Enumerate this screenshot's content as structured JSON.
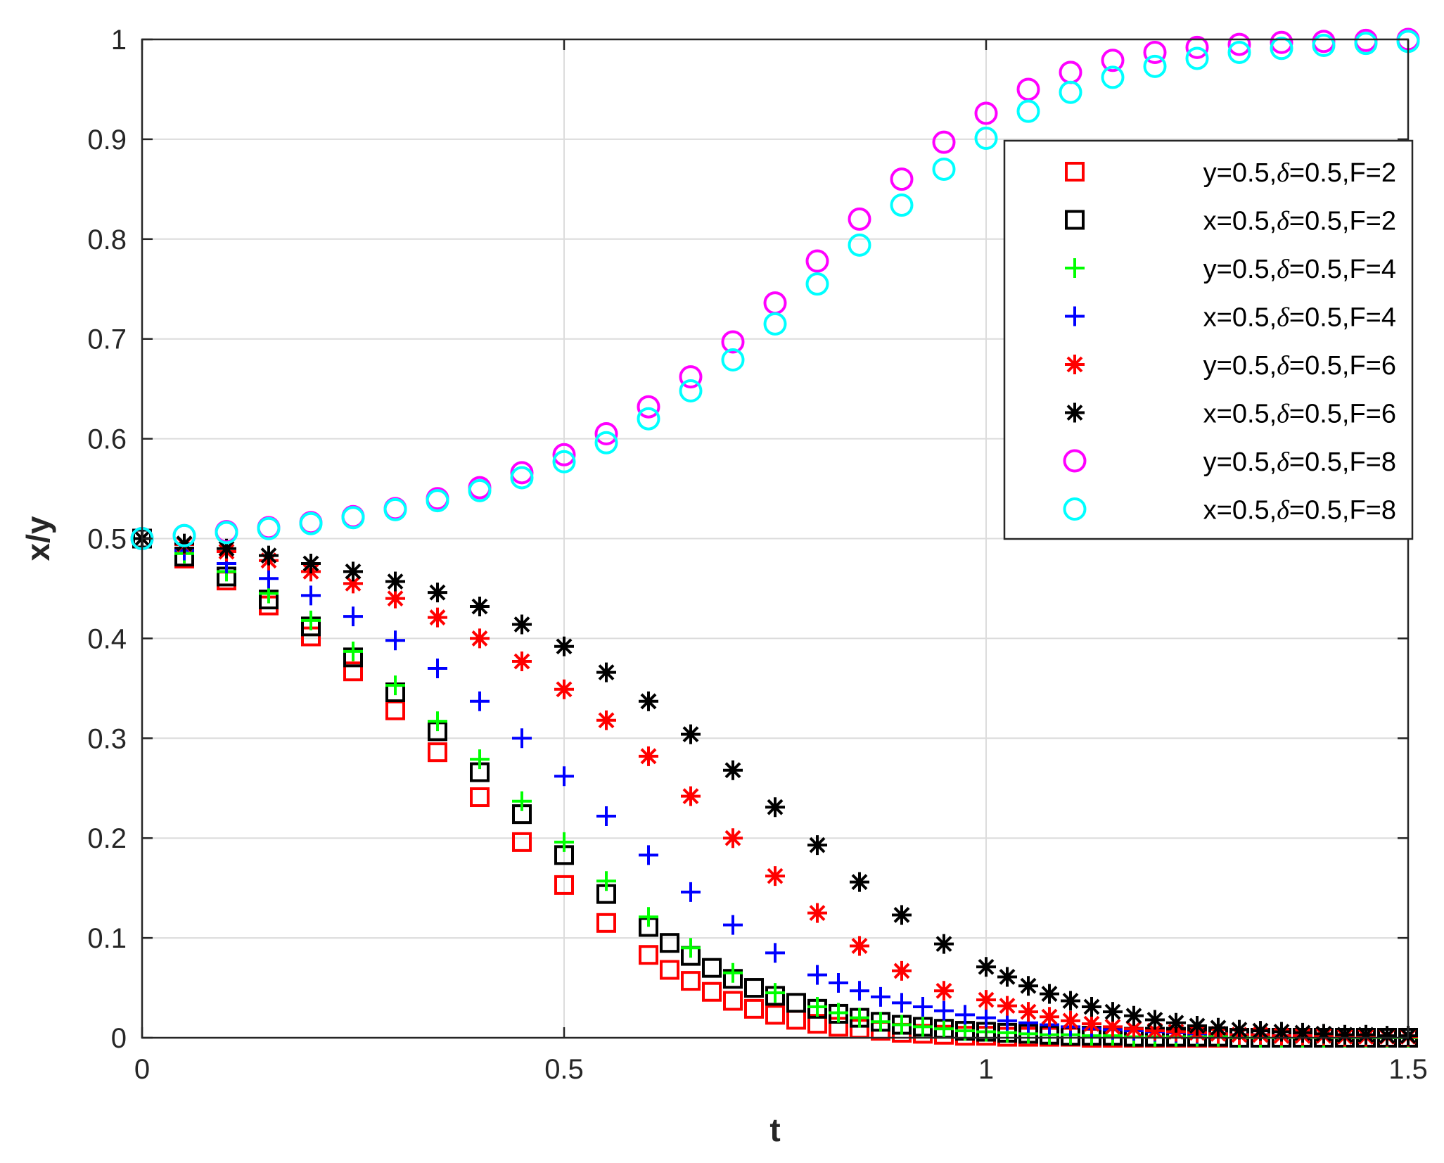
{
  "chart_data": {
    "type": "scatter",
    "title": "",
    "xlabel": "t",
    "ylabel": "x/y",
    "xlim": [
      0,
      1.5
    ],
    "ylim": [
      0,
      1
    ],
    "xticks": [
      0,
      0.5,
      1,
      1.5
    ],
    "xtick_labels": [
      "0",
      "0.5",
      "1",
      "1.5"
    ],
    "yticks": [
      0,
      0.1,
      0.2,
      0.3,
      0.4,
      0.5,
      0.6,
      0.7,
      0.8,
      0.9,
      1
    ],
    "ytick_labels": [
      "0",
      "0.1",
      "0.2",
      "0.3",
      "0.4",
      "0.5",
      "0.6",
      "0.7",
      "0.8",
      "0.9",
      "1"
    ],
    "grid": true,
    "legend_position": "top-right",
    "series": [
      {
        "name": "y=0.5,δ=0.5,F=2",
        "legend": {
          "pre": "y=0.5,",
          "sym": "δ",
          "post": "=0.5,F=2"
        },
        "marker": "square",
        "color": "#ff0000",
        "x": [
          0,
          0.05,
          0.1,
          0.15,
          0.2,
          0.25,
          0.3,
          0.35,
          0.4,
          0.45,
          0.5,
          0.55,
          0.6,
          0.625,
          0.65,
          0.675,
          0.7,
          0.725,
          0.75,
          0.775,
          0.8,
          0.825,
          0.85,
          0.875,
          0.9,
          0.925,
          0.95,
          0.975,
          1.0,
          1.025,
          1.05,
          1.075,
          1.1,
          1.125,
          1.15,
          1.175,
          1.2,
          1.225,
          1.25,
          1.275,
          1.3,
          1.325,
          1.35,
          1.375,
          1.4,
          1.425,
          1.45,
          1.475,
          1.5
        ],
        "y": [
          0.5,
          0.48,
          0.458,
          0.433,
          0.402,
          0.367,
          0.328,
          0.286,
          0.241,
          0.196,
          0.153,
          0.115,
          0.083,
          0.068,
          0.057,
          0.046,
          0.037,
          0.029,
          0.023,
          0.018,
          0.014,
          0.011,
          0.009,
          0.007,
          0.005,
          0.004,
          0.003,
          0.002,
          0.002,
          0.001,
          0.001,
          0.001,
          0.001,
          0,
          0,
          0,
          0,
          0,
          0,
          0,
          0,
          0,
          0,
          0,
          0,
          0,
          0,
          0,
          0
        ]
      },
      {
        "name": "x=0.5,δ=0.5,F=2",
        "legend": {
          "pre": "x=0.5,",
          "sym": "δ",
          "post": "=0.5,F=2"
        },
        "marker": "square",
        "color": "#000000",
        "x": [
          0,
          0.05,
          0.1,
          0.15,
          0.2,
          0.25,
          0.3,
          0.35,
          0.4,
          0.45,
          0.5,
          0.55,
          0.6,
          0.625,
          0.65,
          0.675,
          0.7,
          0.725,
          0.75,
          0.775,
          0.8,
          0.825,
          0.85,
          0.875,
          0.9,
          0.925,
          0.95,
          0.975,
          1.0,
          1.025,
          1.05,
          1.075,
          1.1,
          1.125,
          1.15,
          1.175,
          1.2,
          1.225,
          1.25,
          1.275,
          1.3,
          1.325,
          1.35,
          1.375,
          1.4,
          1.425,
          1.45,
          1.475,
          1.5
        ],
        "y": [
          0.5,
          0.482,
          0.462,
          0.439,
          0.412,
          0.381,
          0.346,
          0.307,
          0.266,
          0.224,
          0.183,
          0.144,
          0.111,
          0.095,
          0.082,
          0.07,
          0.059,
          0.05,
          0.042,
          0.035,
          0.029,
          0.024,
          0.02,
          0.016,
          0.013,
          0.011,
          0.009,
          0.007,
          0.006,
          0.005,
          0.004,
          0.003,
          0.002,
          0.002,
          0.002,
          0.001,
          0.001,
          0.001,
          0.001,
          0.001,
          0,
          0,
          0,
          0,
          0,
          0,
          0,
          0,
          0
        ]
      },
      {
        "name": "y=0.5,δ=0.5,F=4",
        "legend": {
          "pre": "y=0.5,",
          "sym": "δ",
          "post": "=0.5,F=4"
        },
        "marker": "plus",
        "color": "#00ff00",
        "x": [
          0,
          0.05,
          0.1,
          0.15,
          0.2,
          0.25,
          0.3,
          0.35,
          0.4,
          0.45,
          0.5,
          0.55,
          0.6,
          0.65,
          0.7,
          0.75,
          0.8,
          0.825,
          0.85,
          0.875,
          0.9,
          0.925,
          0.95,
          0.975,
          1.0,
          1.025,
          1.05,
          1.075,
          1.1,
          1.125,
          1.15,
          1.175,
          1.2,
          1.225,
          1.25,
          1.275,
          1.3,
          1.325,
          1.35,
          1.375,
          1.4,
          1.425,
          1.45,
          1.475,
          1.5
        ],
        "y": [
          0.5,
          0.485,
          0.467,
          0.445,
          0.418,
          0.387,
          0.353,
          0.317,
          0.279,
          0.237,
          0.196,
          0.157,
          0.121,
          0.09,
          0.065,
          0.045,
          0.031,
          0.025,
          0.02,
          0.016,
          0.013,
          0.011,
          0.009,
          0.007,
          0.006,
          0.005,
          0.004,
          0.003,
          0.003,
          0.002,
          0.002,
          0.001,
          0.001,
          0.001,
          0.001,
          0.001,
          0,
          0,
          0,
          0,
          0,
          0,
          0,
          0,
          0
        ]
      },
      {
        "name": "x=0.5,δ=0.5,F=4",
        "legend": {
          "pre": "x=0.5,",
          "sym": "δ",
          "post": "=0.5,F=4"
        },
        "marker": "plus",
        "color": "#0000ff",
        "x": [
          0,
          0.05,
          0.1,
          0.15,
          0.2,
          0.25,
          0.3,
          0.35,
          0.4,
          0.45,
          0.5,
          0.55,
          0.6,
          0.65,
          0.7,
          0.75,
          0.8,
          0.825,
          0.85,
          0.875,
          0.9,
          0.925,
          0.95,
          0.975,
          1.0,
          1.025,
          1.05,
          1.075,
          1.1,
          1.125,
          1.15,
          1.175,
          1.2,
          1.225,
          1.25,
          1.275,
          1.3,
          1.325,
          1.35,
          1.375,
          1.4,
          1.425,
          1.45,
          1.475,
          1.5
        ],
        "y": [
          0.5,
          0.488,
          0.475,
          0.46,
          0.443,
          0.422,
          0.398,
          0.37,
          0.337,
          0.3,
          0.262,
          0.222,
          0.183,
          0.146,
          0.113,
          0.085,
          0.063,
          0.055,
          0.047,
          0.041,
          0.035,
          0.031,
          0.027,
          0.023,
          0.02,
          0.017,
          0.015,
          0.013,
          0.011,
          0.009,
          0.008,
          0.007,
          0.006,
          0.005,
          0.004,
          0.004,
          0.003,
          0.003,
          0.002,
          0.002,
          0.002,
          0.001,
          0.001,
          0.001,
          0.001
        ]
      },
      {
        "name": "y=0.5,δ=0.5,F=6",
        "legend": {
          "pre": "y=0.5,",
          "sym": "δ",
          "post": "=0.5,F=6"
        },
        "marker": "asterisk",
        "color": "#ff0000",
        "x": [
          0,
          0.05,
          0.1,
          0.15,
          0.2,
          0.25,
          0.3,
          0.35,
          0.4,
          0.45,
          0.5,
          0.55,
          0.6,
          0.65,
          0.7,
          0.75,
          0.8,
          0.85,
          0.9,
          0.95,
          1.0,
          1.025,
          1.05,
          1.075,
          1.1,
          1.125,
          1.15,
          1.175,
          1.2,
          1.225,
          1.25,
          1.275,
          1.3,
          1.325,
          1.35,
          1.375,
          1.4,
          1.425,
          1.45,
          1.475,
          1.5
        ],
        "y": [
          0.5,
          0.494,
          0.487,
          0.478,
          0.467,
          0.455,
          0.44,
          0.421,
          0.4,
          0.377,
          0.349,
          0.318,
          0.282,
          0.242,
          0.2,
          0.162,
          0.125,
          0.092,
          0.067,
          0.047,
          0.038,
          0.032,
          0.026,
          0.021,
          0.017,
          0.014,
          0.011,
          0.009,
          0.007,
          0.006,
          0.005,
          0.004,
          0.003,
          0.003,
          0.002,
          0.002,
          0.002,
          0.001,
          0.001,
          0.001,
          0.001
        ]
      },
      {
        "name": "x=0.5,δ=0.5,F=6",
        "legend": {
          "pre": "x=0.5,",
          "sym": "δ",
          "post": "=0.5,F=6"
        },
        "marker": "asterisk",
        "color": "#000000",
        "x": [
          0,
          0.05,
          0.1,
          0.15,
          0.2,
          0.25,
          0.3,
          0.35,
          0.4,
          0.45,
          0.5,
          0.55,
          0.6,
          0.65,
          0.7,
          0.75,
          0.8,
          0.85,
          0.9,
          0.95,
          1.0,
          1.025,
          1.05,
          1.075,
          1.1,
          1.125,
          1.15,
          1.175,
          1.2,
          1.225,
          1.25,
          1.275,
          1.3,
          1.325,
          1.35,
          1.375,
          1.4,
          1.425,
          1.45,
          1.475,
          1.5
        ],
        "y": [
          0.5,
          0.495,
          0.49,
          0.483,
          0.475,
          0.467,
          0.457,
          0.446,
          0.432,
          0.414,
          0.392,
          0.366,
          0.337,
          0.304,
          0.268,
          0.231,
          0.193,
          0.156,
          0.123,
          0.094,
          0.071,
          0.061,
          0.052,
          0.044,
          0.037,
          0.031,
          0.026,
          0.022,
          0.018,
          0.015,
          0.012,
          0.01,
          0.008,
          0.007,
          0.006,
          0.005,
          0.004,
          0.003,
          0.003,
          0.002,
          0.002
        ]
      },
      {
        "name": "y=0.5,δ=0.5,F=8",
        "legend": {
          "pre": "y=0.5,",
          "sym": "δ",
          "post": "=0.5,F=8"
        },
        "marker": "circle",
        "color": "#ff00ff",
        "x": [
          0,
          0.05,
          0.1,
          0.15,
          0.2,
          0.25,
          0.3,
          0.35,
          0.4,
          0.45,
          0.5,
          0.55,
          0.6,
          0.65,
          0.7,
          0.75,
          0.8,
          0.85,
          0.9,
          0.95,
          1.0,
          1.05,
          1.1,
          1.15,
          1.2,
          1.25,
          1.3,
          1.35,
          1.4,
          1.45,
          1.5
        ],
        "y": [
          0.5,
          0.503,
          0.507,
          0.511,
          0.516,
          0.522,
          0.53,
          0.54,
          0.551,
          0.566,
          0.584,
          0.605,
          0.632,
          0.662,
          0.697,
          0.736,
          0.778,
          0.82,
          0.86,
          0.897,
          0.926,
          0.95,
          0.967,
          0.979,
          0.987,
          0.992,
          0.995,
          0.997,
          0.998,
          0.999,
          1.0
        ]
      },
      {
        "name": "x=0.5,δ=0.5,F=8",
        "legend": {
          "pre": "x=0.5,",
          "sym": "δ",
          "post": "=0.5,F=8"
        },
        "marker": "circle",
        "color": "#00ffff",
        "x": [
          0,
          0.05,
          0.1,
          0.15,
          0.2,
          0.25,
          0.3,
          0.35,
          0.4,
          0.45,
          0.5,
          0.55,
          0.6,
          0.65,
          0.7,
          0.75,
          0.8,
          0.85,
          0.9,
          0.95,
          1.0,
          1.05,
          1.1,
          1.15,
          1.2,
          1.25,
          1.3,
          1.35,
          1.4,
          1.45,
          1.5
        ],
        "y": [
          0.5,
          0.503,
          0.506,
          0.51,
          0.515,
          0.521,
          0.529,
          0.538,
          0.548,
          0.561,
          0.577,
          0.596,
          0.62,
          0.648,
          0.679,
          0.715,
          0.755,
          0.794,
          0.834,
          0.87,
          0.901,
          0.928,
          0.947,
          0.962,
          0.973,
          0.981,
          0.987,
          0.991,
          0.994,
          0.996,
          0.998
        ]
      }
    ]
  }
}
